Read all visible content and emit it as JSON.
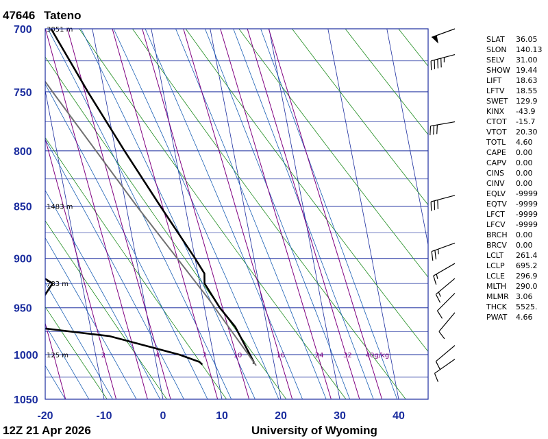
{
  "header": {
    "station_id": "47646",
    "station_name": "Tateno"
  },
  "footer": {
    "time": "12Z 21 Apr 2026",
    "source": "University of Wyoming"
  },
  "colors": {
    "frame": "#1a2c9e",
    "isotherm": "#1a2c9e",
    "dry_adiabat": "#1e8c1e",
    "moist_adiabat": "#1a5fb4",
    "mixing_ratio": "#800080",
    "temperature": "#000000",
    "dewpoint": "#000000",
    "parcel": "#707070"
  },
  "chart_data": {
    "type": "line",
    "diagram": "skew-T log-P",
    "pressure_ticks": [
      700,
      750,
      800,
      850,
      900,
      950,
      1000,
      1050
    ],
    "temperature_ticks": [
      -20,
      -10,
      0,
      10,
      20,
      30,
      40
    ],
    "plim": [
      700,
      1050
    ],
    "tlim_bottom": [
      -20,
      45
    ],
    "height_labels": [
      {
        "p": 700,
        "text": "3051 m"
      },
      {
        "p": 850,
        "text": "1483 m"
      },
      {
        "p": 925,
        "text": "783 m"
      },
      {
        "p": 1000,
        "text": "125 m"
      }
    ],
    "mixing_ratio_labels": [
      {
        "w": 2,
        "text": "2"
      },
      {
        "w": 4,
        "text": "4"
      },
      {
        "w": 7,
        "text": "7"
      },
      {
        "w": 10,
        "text": "10"
      },
      {
        "w": 16,
        "text": "16"
      },
      {
        "w": 24,
        "text": "24"
      },
      {
        "w": 32,
        "text": "32"
      },
      {
        "w": 40,
        "text": "40g/kg"
      }
    ],
    "series": [
      {
        "key": "temperature",
        "p": [
          1010,
          1008,
          985,
          970,
          950,
          925,
          915,
          900,
          850,
          800,
          750,
          700
        ],
        "t": [
          16.5,
          16.6,
          15.4,
          14.6,
          12.6,
          10.8,
          11.1,
          10.0,
          5.8,
          1.5,
          -2.8,
          -7.0
        ]
      },
      {
        "key": "dewpoint",
        "p": [
          1011,
          1008,
          1000,
          980,
          970,
          950,
          925,
          908,
          893
        ],
        "t": [
          7.8,
          7.4,
          4.2,
          -7.0,
          -20.0,
          -18.5,
          -15.0,
          -19.0,
          -22.0
        ]
      },
      {
        "key": "parcel",
        "p": [
          1012,
          940,
          850,
          750,
          700
        ],
        "t": [
          16.9,
          10.9,
          1.8,
          -8.8,
          -14.4
        ]
      }
    ],
    "wind_barbs": [
      {
        "p": 700,
        "dir": 250,
        "spd": 50
      },
      {
        "p": 720,
        "dir": 255,
        "spd": 45
      },
      {
        "p": 775,
        "dir": 260,
        "spd": 30
      },
      {
        "p": 840,
        "dir": 255,
        "spd": 30
      },
      {
        "p": 885,
        "dir": 250,
        "spd": 25
      },
      {
        "p": 905,
        "dir": 240,
        "spd": 15
      },
      {
        "p": 920,
        "dir": 230,
        "spd": 15
      },
      {
        "p": 935,
        "dir": 225,
        "spd": 10
      },
      {
        "p": 955,
        "dir": 220,
        "spd": 10
      },
      {
        "p": 990,
        "dir": 230,
        "spd": 10
      },
      {
        "p": 1005,
        "dir": 235,
        "spd": 10
      }
    ]
  },
  "indices": [
    {
      "key": "SLAT",
      "value": "36.05"
    },
    {
      "key": "SLON",
      "value": "140.13"
    },
    {
      "key": "SELV",
      "value": "31.00"
    },
    {
      "key": "SHOW",
      "value": "19.44"
    },
    {
      "key": "LIFT",
      "value": "18.63"
    },
    {
      "key": "LFTV",
      "value": "18.55"
    },
    {
      "key": "SWET",
      "value": "129.9"
    },
    {
      "key": "KINX",
      "value": "-43.9"
    },
    {
      "key": "CTOT",
      "value": "-15.7"
    },
    {
      "key": "VTOT",
      "value": "20.30"
    },
    {
      "key": "TOTL",
      "value": "4.60"
    },
    {
      "key": "CAPE",
      "value": "0.00"
    },
    {
      "key": "CAPV",
      "value": "0.00"
    },
    {
      "key": "CINS",
      "value": "0.00"
    },
    {
      "key": "CINV",
      "value": "0.00"
    },
    {
      "key": "EQLV",
      "value": "-9999"
    },
    {
      "key": "EQTV",
      "value": "-9999"
    },
    {
      "key": "LFCT",
      "value": "-9999"
    },
    {
      "key": "LFCV",
      "value": "-9999"
    },
    {
      "key": "BRCH",
      "value": "0.00"
    },
    {
      "key": "BRCV",
      "value": "0.00"
    },
    {
      "key": "LCLT",
      "value": "261.4"
    },
    {
      "key": "LCLP",
      "value": "695.2"
    },
    {
      "key": "LCLE",
      "value": "296.9"
    },
    {
      "key": "MLTH",
      "value": "290.0"
    },
    {
      "key": "MLMR",
      "value": "3.06"
    },
    {
      "key": "THCK",
      "value": "5525."
    },
    {
      "key": "PWAT",
      "value": "4.66"
    }
  ]
}
